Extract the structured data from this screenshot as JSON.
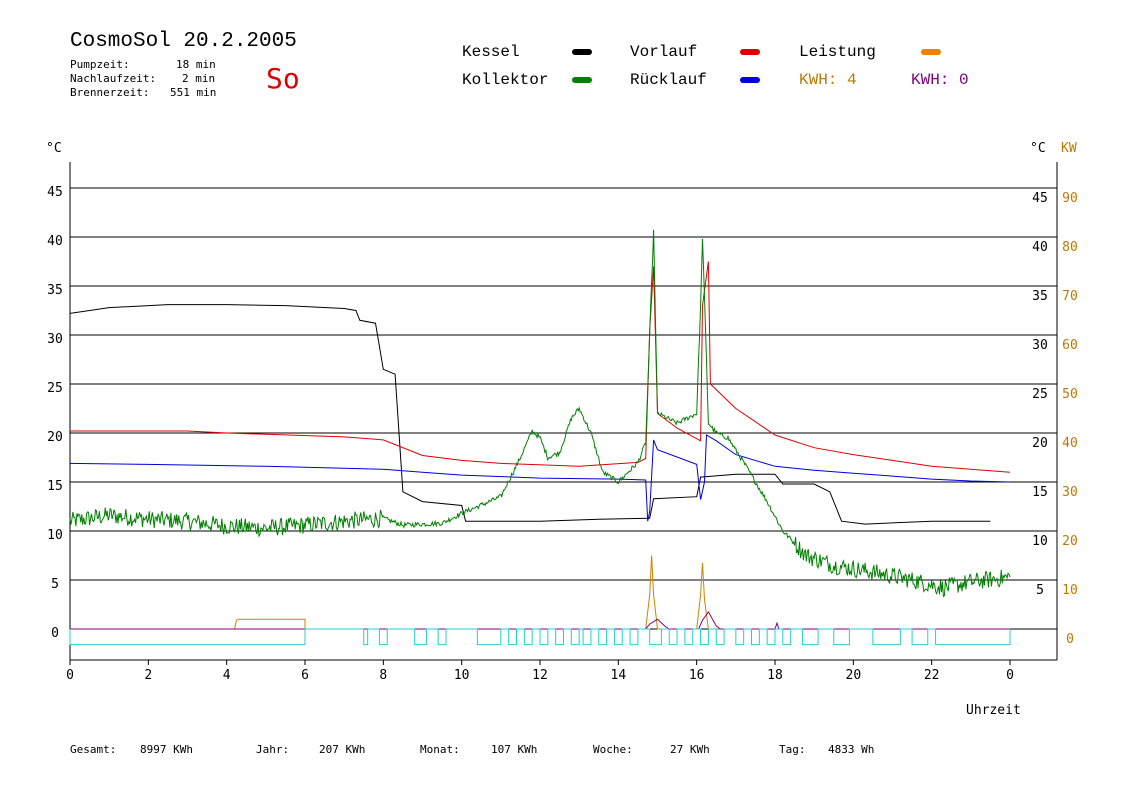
{
  "header": {
    "title": "CosmoSol 20.2.2005",
    "day": "So",
    "stats": [
      {
        "label": "Pumpzeit:",
        "value": "18 min"
      },
      {
        "label": "Nachlaufzeit:",
        "value": "2 min"
      },
      {
        "label": "Brennerzeit:",
        "value": "551 min"
      }
    ]
  },
  "legend": {
    "items": [
      {
        "name": "Kessel",
        "color": "#000000"
      },
      {
        "name": "Vorlauf",
        "color": "#e00000"
      },
      {
        "name": "Leistung",
        "color": "#f08000"
      },
      {
        "name": "Kollektor",
        "color": "#008000"
      },
      {
        "name": "Rücklauf",
        "color": "#0000e0"
      }
    ],
    "kwh1": "KWH: 4",
    "kwh1_color": "#c07800",
    "kwh2": "KWH: 0",
    "kwh2_color": "#800080"
  },
  "footer": [
    {
      "label": "Gesamt:",
      "value": "8997 KWh"
    },
    {
      "label": "Jahr:",
      "value": "207 KWh"
    },
    {
      "label": "Monat:",
      "value": "107 KWh"
    },
    {
      "label": "Woche:",
      "value": "27 KWh"
    },
    {
      "label": "Tag:",
      "value": "4833 Wh"
    }
  ],
  "chart_data": {
    "type": "line",
    "xlabel": "Uhrzeit",
    "ylabel_left": "°C",
    "ylabel_right_c": "°C",
    "ylabel_right_kw": "KW",
    "x_ticks": [
      "0",
      "2",
      "4",
      "6",
      "8",
      "10",
      "12",
      "14",
      "16",
      "18",
      "20",
      "22",
      "0"
    ],
    "y_ticks_left": [
      0,
      5,
      10,
      15,
      20,
      25,
      30,
      35,
      40,
      45
    ],
    "y_ticks_right_c": [
      5,
      10,
      15,
      20,
      25,
      30,
      35,
      40,
      45
    ],
    "y_ticks_right_kw": [
      0,
      10,
      20,
      30,
      40,
      50,
      60,
      70,
      80,
      90
    ],
    "xlim": [
      0,
      24
    ],
    "ylim": [
      0,
      47
    ],
    "grid": true,
    "series": [
      {
        "name": "Kessel",
        "color": "#000000",
        "points": [
          [
            0,
            32.2
          ],
          [
            1,
            32.8
          ],
          [
            2.5,
            33.1
          ],
          [
            4,
            33.1
          ],
          [
            5.5,
            33
          ],
          [
            7,
            32.7
          ],
          [
            7.3,
            32.5
          ],
          [
            7.4,
            31.5
          ],
          [
            7.8,
            31.2
          ],
          [
            8,
            26.5
          ],
          [
            8.3,
            26
          ],
          [
            8.4,
            20
          ],
          [
            8.5,
            14
          ],
          [
            9,
            13
          ],
          [
            10,
            12.6
          ],
          [
            10.1,
            11
          ],
          [
            12,
            11
          ],
          [
            13.5,
            11.2
          ],
          [
            14.8,
            11.3
          ],
          [
            14.9,
            13.3
          ],
          [
            16,
            13.5
          ],
          [
            16.1,
            15.5
          ],
          [
            17,
            15.8
          ],
          [
            18,
            15.8
          ],
          [
            18.2,
            14.8
          ],
          [
            19,
            14.8
          ],
          [
            19.4,
            14
          ],
          [
            19.7,
            11
          ],
          [
            20.3,
            10.7
          ],
          [
            22,
            11
          ],
          [
            23.5,
            11
          ]
        ]
      },
      {
        "name": "Vorlauf",
        "color": "#e00000",
        "points": [
          [
            0,
            20.2
          ],
          [
            3,
            20.2
          ],
          [
            4,
            20
          ],
          [
            7,
            19.6
          ],
          [
            8,
            19.3
          ],
          [
            9,
            17.7
          ],
          [
            10,
            17.2
          ],
          [
            11,
            16.9
          ],
          [
            13,
            16.6
          ],
          [
            14.5,
            17
          ],
          [
            14.7,
            17.4
          ],
          [
            14.8,
            30.5
          ],
          [
            14.9,
            37
          ],
          [
            15,
            22
          ],
          [
            15.5,
            20.5
          ],
          [
            16.1,
            19.2
          ],
          [
            16.15,
            33
          ],
          [
            16.3,
            37.5
          ],
          [
            16.35,
            25
          ],
          [
            17,
            22.5
          ],
          [
            18,
            19.8
          ],
          [
            19,
            18.5
          ],
          [
            20,
            17.8
          ],
          [
            21,
            17.2
          ],
          [
            22,
            16.6
          ],
          [
            23,
            16.3
          ],
          [
            24,
            16
          ]
        ]
      },
      {
        "name": "Rücklauf",
        "color": "#0000e0",
        "points": [
          [
            0,
            16.9
          ],
          [
            2,
            16.8
          ],
          [
            5,
            16.6
          ],
          [
            7,
            16.4
          ],
          [
            8,
            16.3
          ],
          [
            9,
            16
          ],
          [
            10,
            15.7
          ],
          [
            12,
            15.4
          ],
          [
            14,
            15.3
          ],
          [
            14.7,
            15.2
          ],
          [
            14.75,
            11
          ],
          [
            14.8,
            12
          ],
          [
            14.9,
            19.3
          ],
          [
            15,
            18.3
          ],
          [
            16,
            16.8
          ],
          [
            16.1,
            13.2
          ],
          [
            16.2,
            15
          ],
          [
            16.25,
            19.8
          ],
          [
            16.5,
            19.2
          ],
          [
            17,
            17.8
          ],
          [
            18,
            16.6
          ],
          [
            19,
            16.2
          ],
          [
            20,
            15.9
          ],
          [
            21,
            15.6
          ],
          [
            22,
            15.3
          ],
          [
            23,
            15.1
          ],
          [
            24,
            15
          ]
        ]
      },
      {
        "name": "Kollektor",
        "color": "#008000",
        "noise": true,
        "points": [
          [
            0,
            11
          ],
          [
            1,
            11.6
          ],
          [
            2,
            11.2
          ],
          [
            3,
            11
          ],
          [
            4,
            10.5
          ],
          [
            5,
            10.3
          ],
          [
            6,
            10.6
          ],
          [
            7,
            11
          ],
          [
            8,
            11.3
          ],
          [
            8.5,
            10.6
          ],
          [
            9.5,
            10.8
          ],
          [
            10,
            11.8
          ],
          [
            11,
            13.5
          ],
          [
            11.5,
            17.5
          ],
          [
            11.8,
            20.2
          ],
          [
            12,
            19.5
          ],
          [
            12.2,
            17.5
          ],
          [
            12.5,
            18
          ],
          [
            12.8,
            21.5
          ],
          [
            13,
            22.5
          ],
          [
            13.3,
            20
          ],
          [
            13.6,
            16
          ],
          [
            14,
            15
          ],
          [
            14.5,
            17
          ],
          [
            14.7,
            19
          ],
          [
            14.8,
            30
          ],
          [
            14.9,
            40.5
          ],
          [
            15,
            22
          ],
          [
            15.5,
            21
          ],
          [
            16,
            22
          ],
          [
            16.1,
            33
          ],
          [
            16.15,
            40
          ],
          [
            16.3,
            21
          ],
          [
            16.5,
            20
          ],
          [
            16.8,
            19.5
          ],
          [
            17.2,
            17
          ],
          [
            17.8,
            13
          ],
          [
            18.2,
            10
          ],
          [
            18.8,
            7.5
          ],
          [
            19.5,
            6.5
          ],
          [
            20.5,
            5.8
          ],
          [
            21.5,
            5
          ],
          [
            22.3,
            4.2
          ],
          [
            23,
            4.8
          ],
          [
            24,
            5.3
          ]
        ]
      },
      {
        "name": "Leistung",
        "color": "#d08000",
        "axis": "kw",
        "points": [
          [
            0,
            0
          ],
          [
            4.2,
            0
          ],
          [
            4.25,
            1.8
          ],
          [
            4.3,
            2
          ],
          [
            5,
            2
          ],
          [
            6,
            2
          ],
          [
            6,
            0
          ],
          [
            14.7,
            0
          ],
          [
            14.8,
            7
          ],
          [
            14.85,
            15
          ],
          [
            14.9,
            7
          ],
          [
            15,
            0
          ],
          [
            16,
            0
          ],
          [
            16.1,
            7
          ],
          [
            16.15,
            13.5
          ],
          [
            16.2,
            6
          ],
          [
            16.3,
            0
          ],
          [
            24,
            0
          ]
        ]
      },
      {
        "name": "Leistung2",
        "color": "#800080",
        "axis": "kw",
        "points": [
          [
            0,
            0
          ],
          [
            14.7,
            0
          ],
          [
            14.8,
            1
          ],
          [
            15,
            2
          ],
          [
            15.2,
            0.5
          ],
          [
            15.3,
            0
          ],
          [
            16.05,
            0
          ],
          [
            16.15,
            1.8
          ],
          [
            16.3,
            3.5
          ],
          [
            16.5,
            0.6
          ],
          [
            16.6,
            0
          ],
          [
            18,
            0
          ],
          [
            18.05,
            1.2
          ],
          [
            18.1,
            0
          ],
          [
            24,
            0
          ]
        ]
      },
      {
        "name": "Pumpe",
        "color": "#20d0d0",
        "digital": true,
        "on_value": 0,
        "off_value": -1.6,
        "segments": [
          [
            0,
            6
          ],
          [
            7.5,
            7.6
          ],
          [
            7.9,
            8.1
          ],
          [
            8.8,
            9.1
          ],
          [
            9.4,
            9.6
          ],
          [
            10.4,
            11
          ],
          [
            11.2,
            11.4
          ],
          [
            11.6,
            11.8
          ],
          [
            12,
            12.2
          ],
          [
            12.4,
            12.6
          ],
          [
            12.8,
            13
          ],
          [
            13.1,
            13.3
          ],
          [
            13.5,
            13.7
          ],
          [
            13.9,
            14.1
          ],
          [
            14.3,
            14.5
          ],
          [
            14.8,
            15.1
          ],
          [
            15.3,
            15.5
          ],
          [
            15.7,
            15.9
          ],
          [
            16.1,
            16.3
          ],
          [
            16.5,
            16.7
          ],
          [
            17,
            17.2
          ],
          [
            17.4,
            17.6
          ],
          [
            17.8,
            18
          ],
          [
            18.2,
            18.4
          ],
          [
            18.7,
            19.1
          ],
          [
            19.5,
            19.9
          ],
          [
            20.5,
            21.2
          ],
          [
            21.5,
            21.9
          ],
          [
            22.1,
            24
          ]
        ]
      }
    ]
  }
}
